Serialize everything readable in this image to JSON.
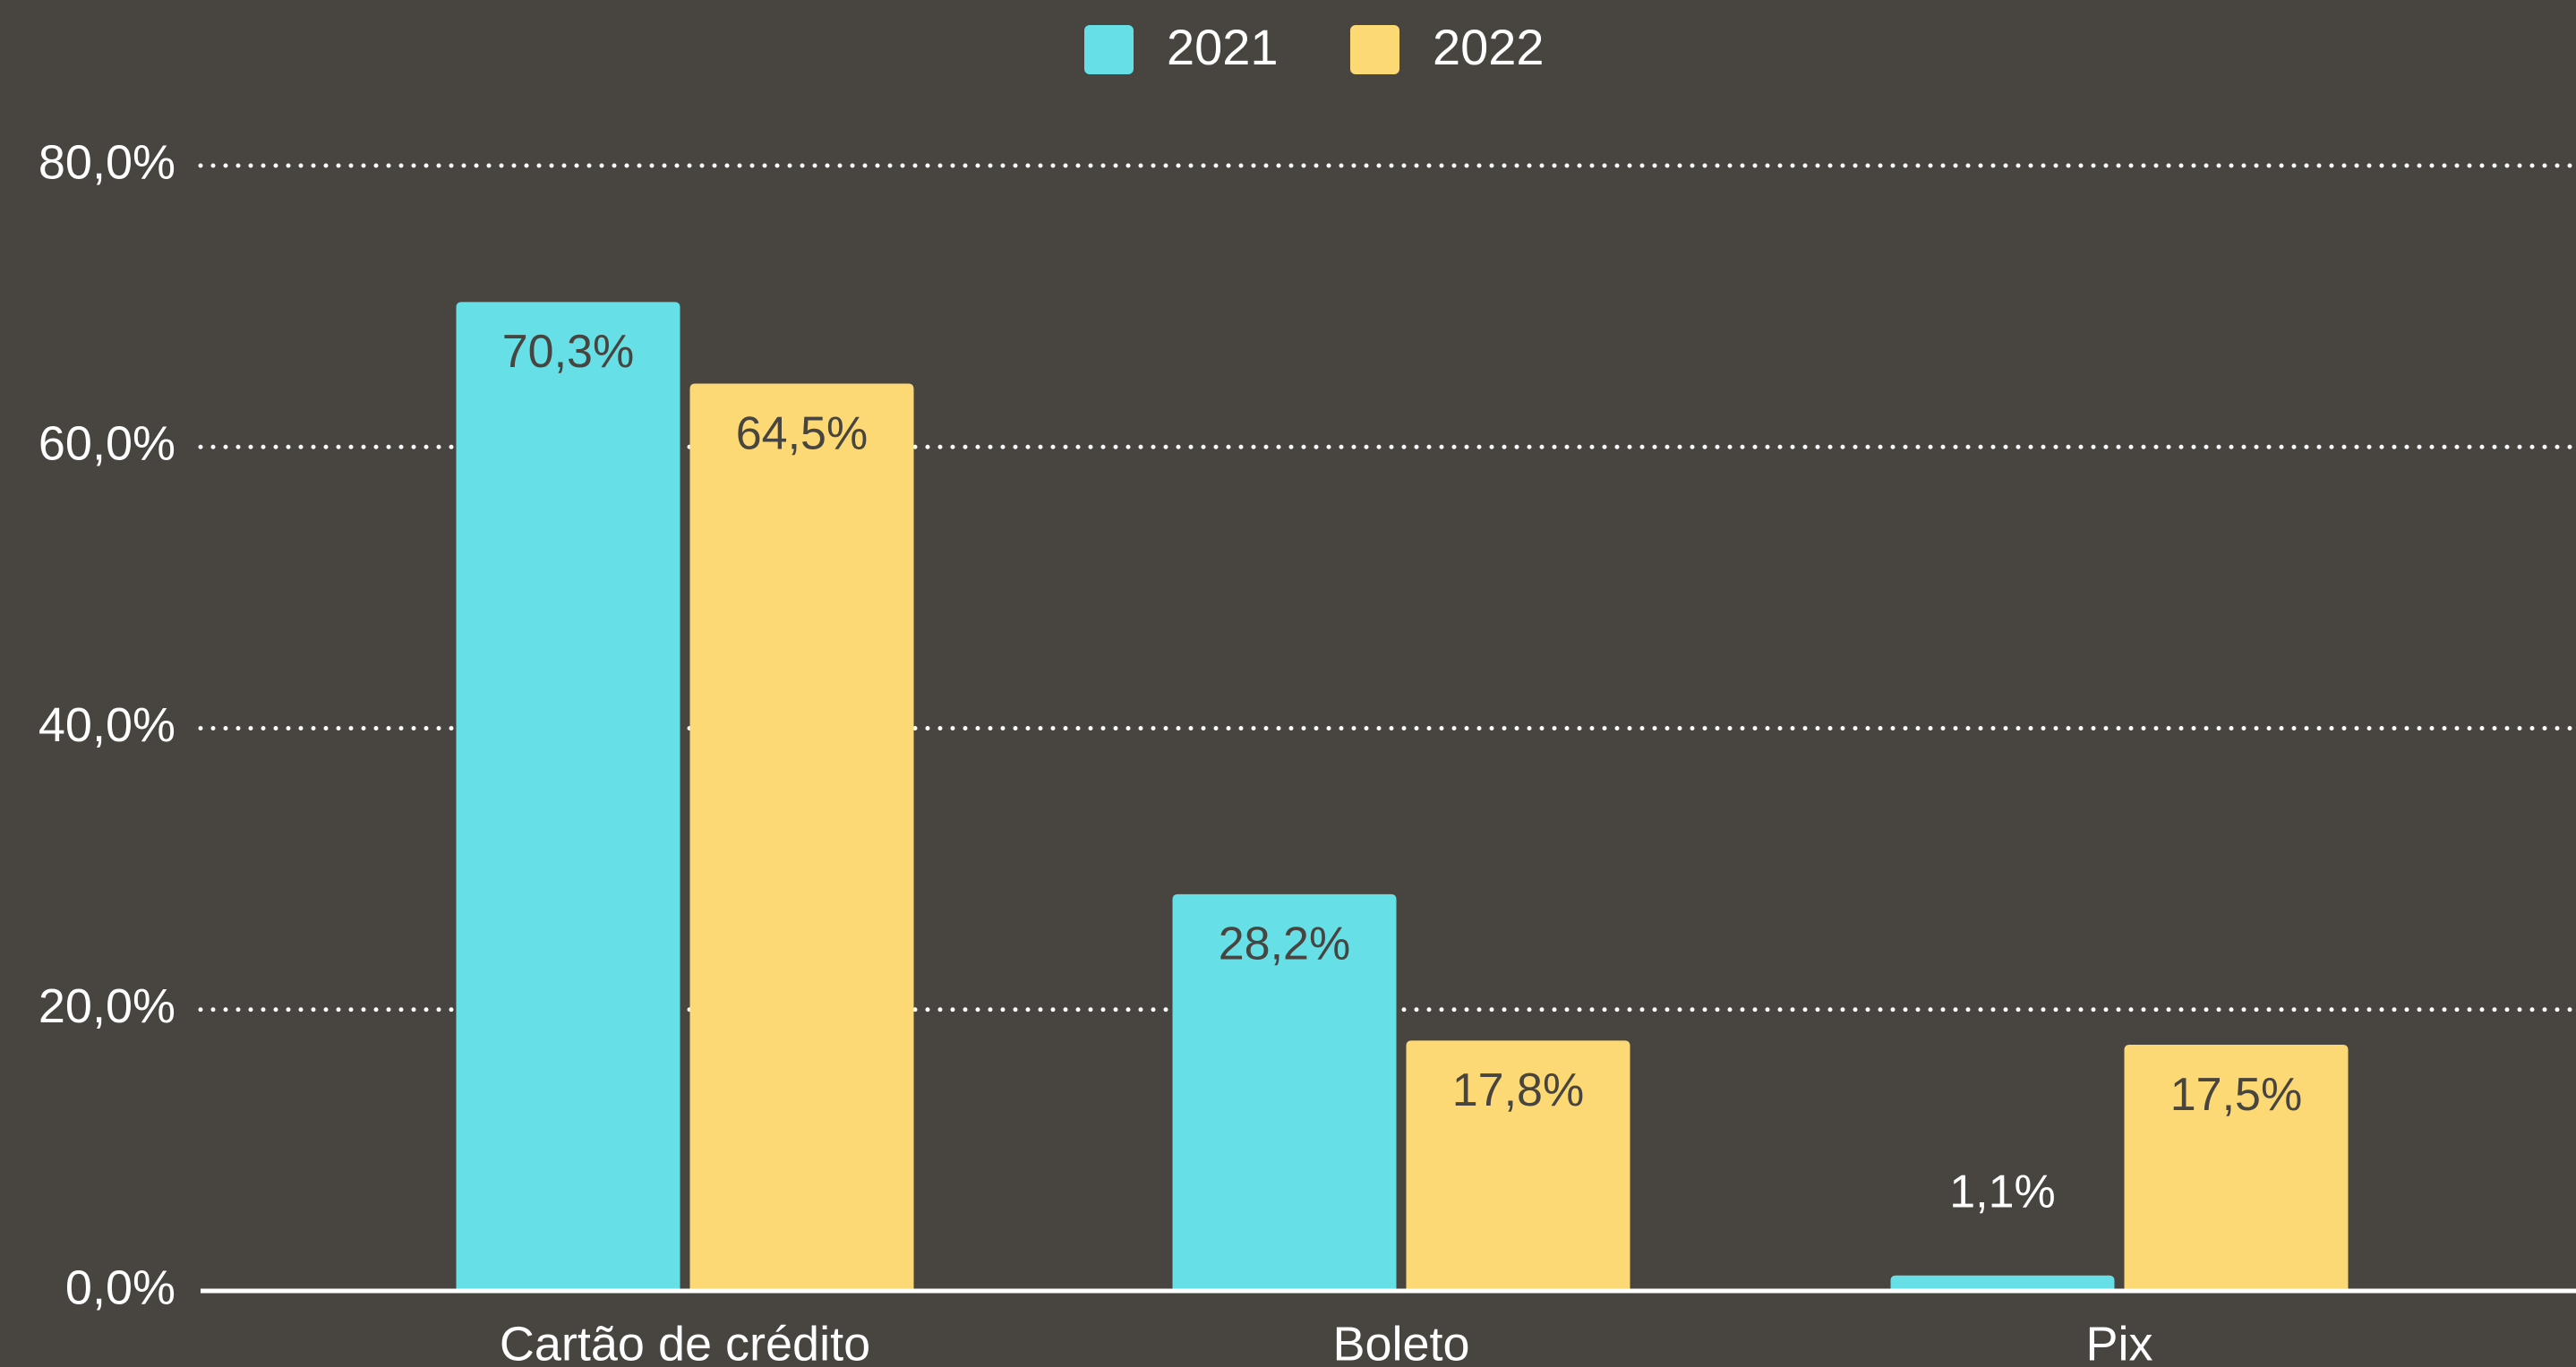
{
  "chart_data": {
    "type": "bar",
    "categories": [
      "Cartão de crédito",
      "Boleto",
      "Pix"
    ],
    "series": [
      {
        "name": "2021",
        "color": "#66dfe6",
        "values": [
          70.3,
          28.2,
          1.1
        ],
        "value_labels": [
          "70,3%",
          "28,2%",
          "1,1%"
        ]
      },
      {
        "name": "2022",
        "color": "#fdd975",
        "values": [
          64.5,
          17.8,
          17.5
        ],
        "value_labels": [
          "64,5%",
          "17,8%",
          "17,5%"
        ]
      }
    ],
    "ylim": [
      0,
      80
    ],
    "yticks": [
      {
        "value": 0,
        "label": "0,0%"
      },
      {
        "value": 20,
        "label": "20,0%"
      },
      {
        "value": 40,
        "label": "40,0%"
      },
      {
        "value": 60,
        "label": "60,0%"
      },
      {
        "value": 80,
        "label": "80,0%"
      }
    ],
    "grid": true,
    "legend": "top"
  }
}
